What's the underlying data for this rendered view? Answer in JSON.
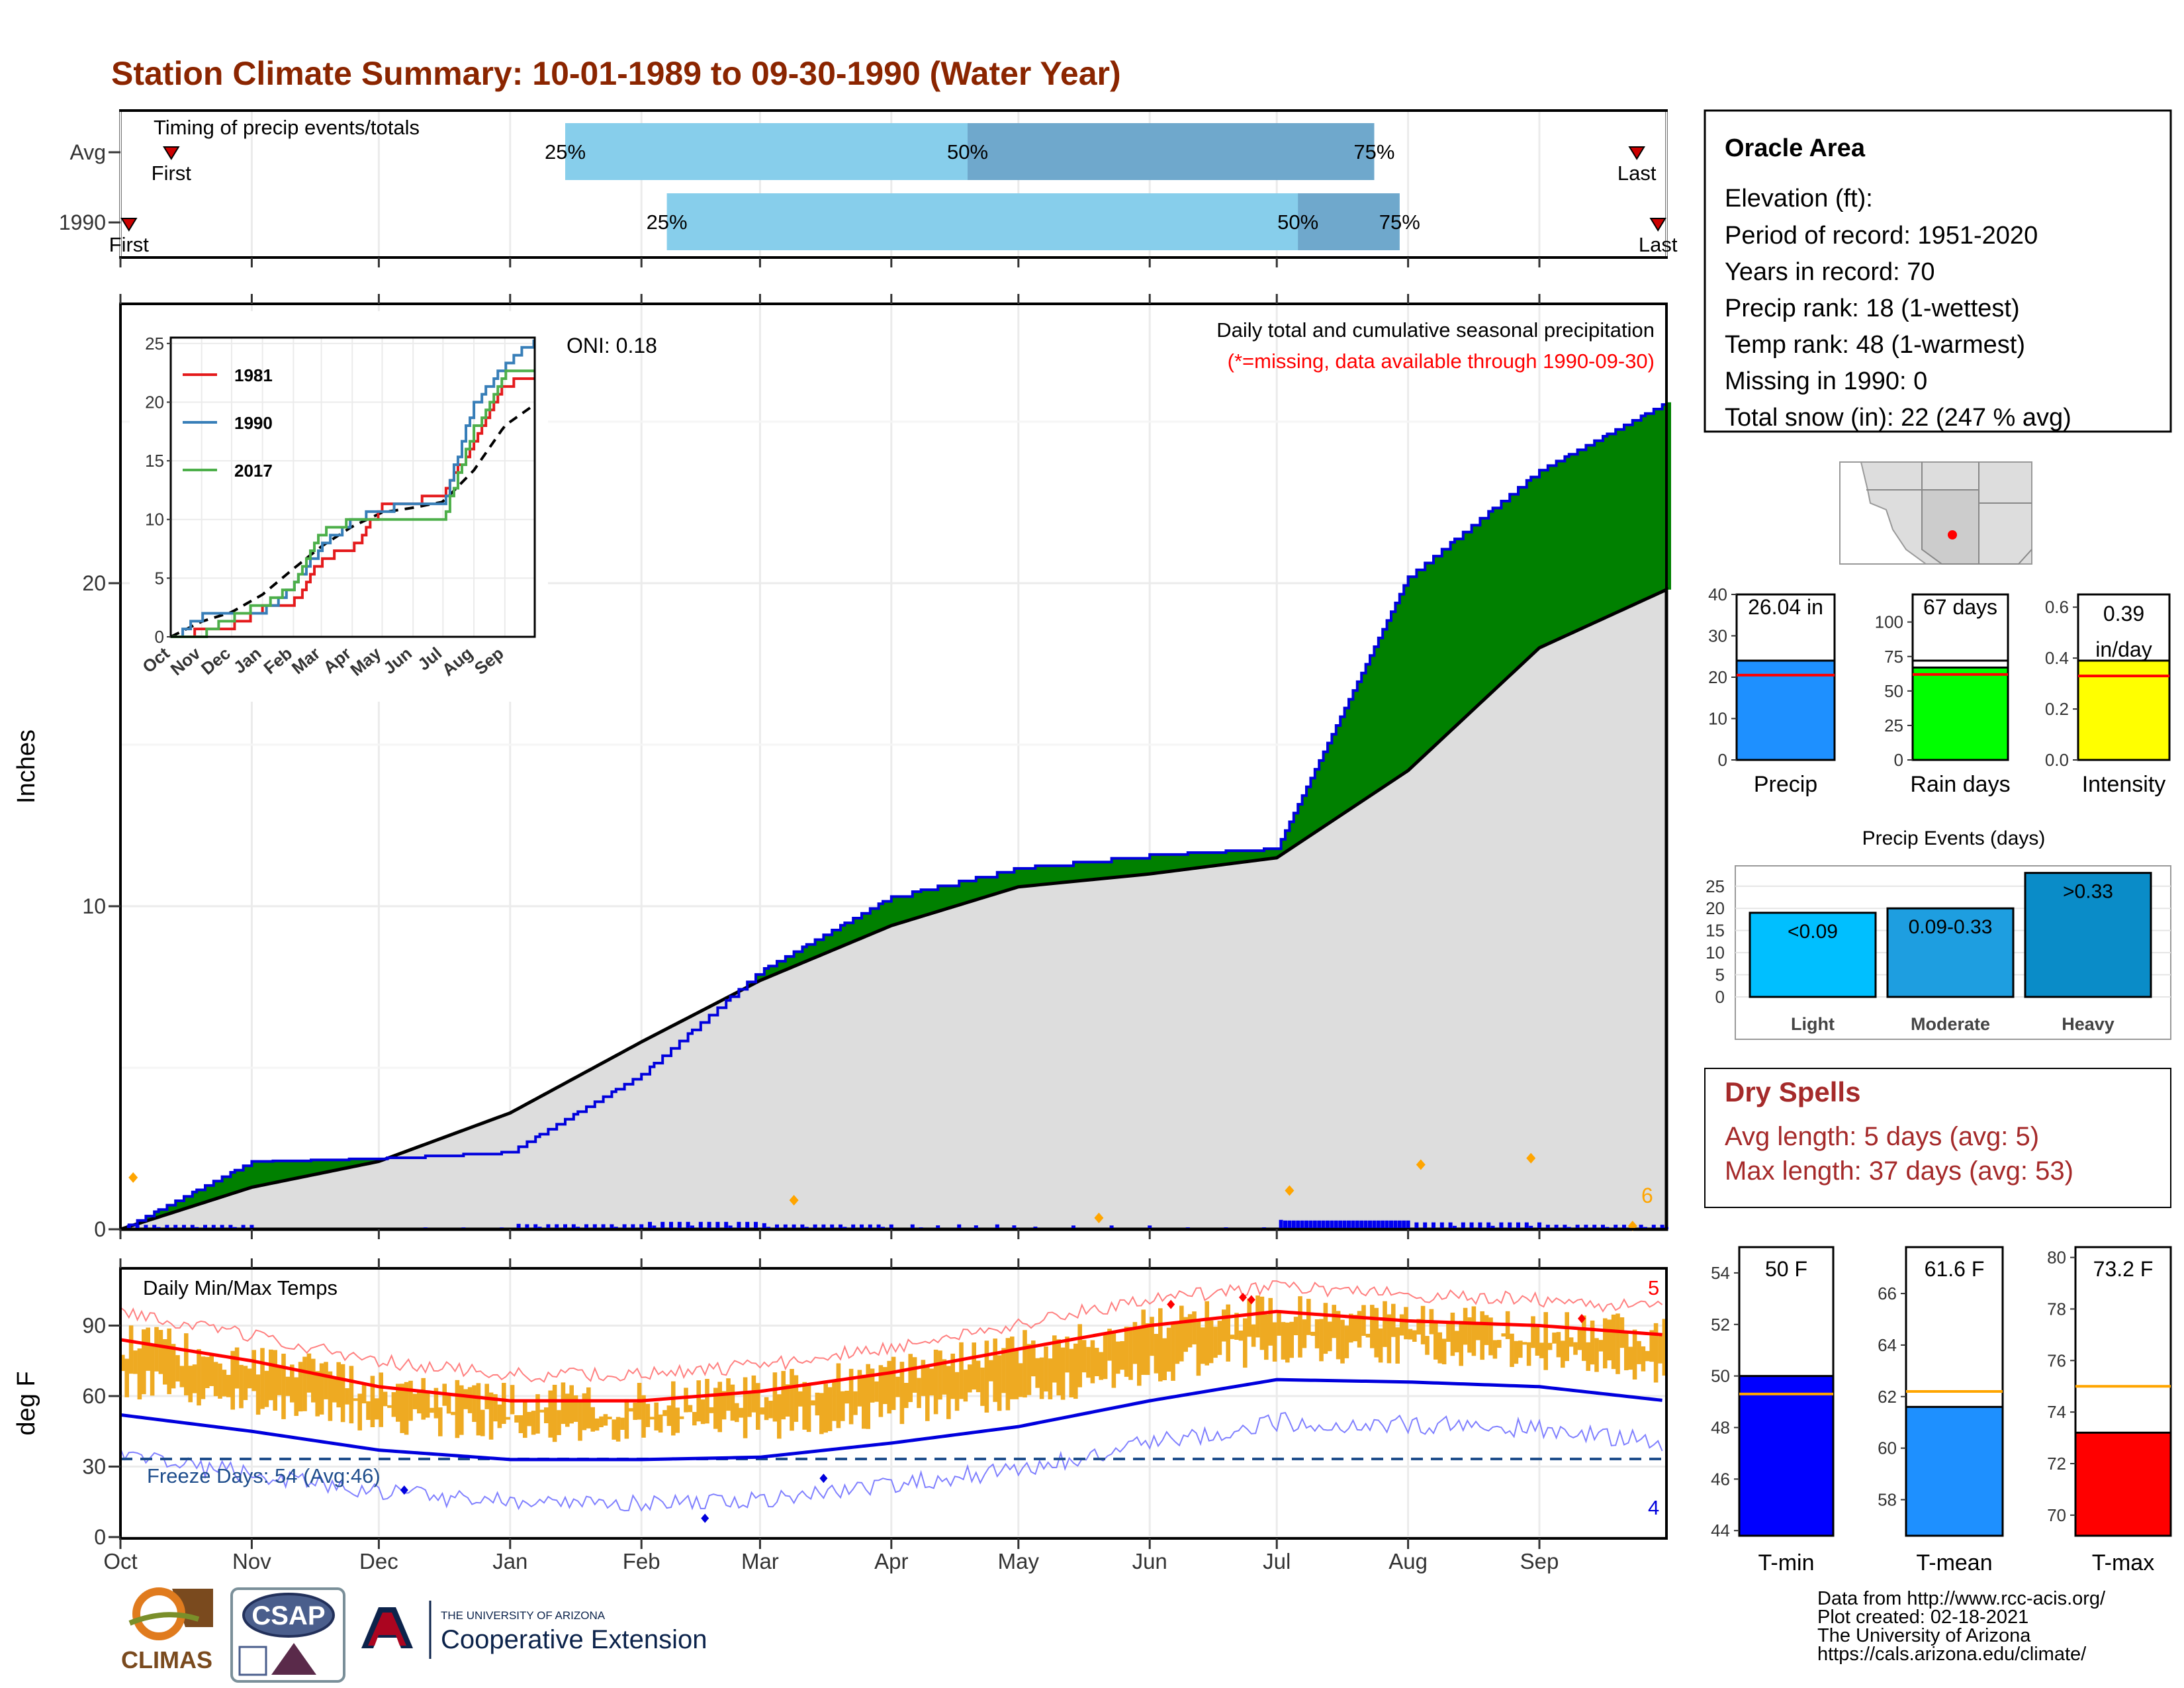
{
  "title": "Station Climate Summary: 10-01-1989 to 09-30-1990 (Water Year)",
  "timing": {
    "label": "Timing of precip events/totals",
    "rows": [
      {
        "name": "Avg",
        "first_label": "First",
        "last_label": "Last",
        "first": 12,
        "last": 358,
        "q25": 105,
        "q50": 200,
        "q75": 296
      },
      {
        "name": "1990",
        "first_label": "First",
        "last_label": "Last",
        "first": 2,
        "last": 363,
        "q25": 129,
        "q50": 278,
        "q75": 302
      }
    ],
    "pct_labels": [
      "25%",
      "50%",
      "75%"
    ]
  },
  "precip": {
    "title": "Daily total and cumulative seasonal precipitation",
    "subtitle": "(*=missing, data available through 1990-09-30)",
    "oni": "ONI: 0.18",
    "ylabel": "Inches",
    "yticks": [
      "0",
      "10",
      "20"
    ],
    "corner_count": "6"
  },
  "inset": {
    "yticks": [
      "0",
      "5",
      "10",
      "15",
      "20",
      "25"
    ],
    "xticks": [
      "Oct",
      "Nov",
      "Dec",
      "Jan",
      "Feb",
      "Mar",
      "Apr",
      "May",
      "Jun",
      "Jul",
      "Aug",
      "Sep"
    ],
    "legend": [
      "1981",
      "1990",
      "2017"
    ]
  },
  "temps": {
    "title": "Daily Min/Max Temps",
    "ylabel": "deg F",
    "yticks": [
      "0",
      "30",
      "60",
      "90"
    ],
    "freeze_label": "Freeze Days: 54 (Avg:46)",
    "max_count": "5",
    "min_count": "4"
  },
  "months": [
    "Oct",
    "Nov",
    "Dec",
    "Jan",
    "Feb",
    "Mar",
    "Apr",
    "May",
    "Jun",
    "Jul",
    "Aug",
    "Sep"
  ],
  "station": {
    "name": "Oracle Area",
    "lines": [
      "Elevation (ft):",
      "Period of record: 1951-2020",
      "Years in record: 70",
      "Precip rank: 18 (1-wettest)",
      "Temp rank: 48 (1-warmest)",
      "Missing in 1990: 0",
      "Total snow (in): 22 (247 % avg)"
    ]
  },
  "mini_bars": {
    "precip": {
      "label": "Precip",
      "text": "26.04 in",
      "ticks": [
        "0",
        "10",
        "20",
        "30",
        "40"
      ]
    },
    "rain_days": {
      "label": "Rain days",
      "text": "67 days",
      "ticks": [
        "0",
        "25",
        "50",
        "75",
        "100"
      ]
    },
    "intensity": {
      "label": "Intensity",
      "text": "0.39",
      "text2": "in/day",
      "ticks": [
        "0.0",
        "0.2",
        "0.4",
        "0.6"
      ]
    }
  },
  "events": {
    "title": "Precip Events (days)",
    "ticks": [
      "0",
      "5",
      "10",
      "15",
      "20",
      "25"
    ],
    "bars": [
      {
        "cat": "Light",
        "label": "<0.09"
      },
      {
        "cat": "Moderate",
        "label": "0.09-0.33"
      },
      {
        "cat": "Heavy",
        "label": ">0.33"
      }
    ]
  },
  "dry_spells": {
    "title": "Dry Spells",
    "avg_line": "Avg length: 5 days (avg: 5)",
    "max_line": "Max length: 37 days (avg: 53)"
  },
  "temp_bars": {
    "tmin": {
      "label": "T-min",
      "text": "50 F",
      "ticks": [
        "44",
        "46",
        "48",
        "50",
        "52",
        "54"
      ]
    },
    "tmean": {
      "label": "T-mean",
      "text": "61.6 F",
      "ticks": [
        "58",
        "60",
        "62",
        "64",
        "66"
      ]
    },
    "tmax": {
      "label": "T-max",
      "text": "73.2 F",
      "ticks": [
        "70",
        "72",
        "74",
        "76",
        "78",
        "80"
      ]
    }
  },
  "footer": {
    "lines": [
      "Data from http://www.rcc-acis.org/",
      "Plot created: 02-18-2021",
      "The University of Arizona",
      "https://cals.arizona.edu/climate/"
    ],
    "climas": "CLIMAS",
    "csap": "CSAP",
    "ua_small": "THE UNIVERSITY OF ARIZONA",
    "ua_big": "Cooperative Extension"
  },
  "colors": {
    "title": "#8B2500",
    "above": "#008000",
    "below": "#8B5A00",
    "cum_line": "#0000DD",
    "normal_fill": "#DDDDDD",
    "tmax_line": "#FF0000",
    "tmin_line": "#0000DD",
    "temp_bar": "#EEAA22",
    "timing_light": "#87CEEB",
    "timing_dark": "#6FA8CC",
    "dry_spells": "#A52A2A"
  },
  "chart_data": [
    {
      "type": "area",
      "title": "Daily total and cumulative seasonal precipitation",
      "ylabel": "Inches",
      "ylim": [
        0,
        26
      ],
      "x": [
        "Oct",
        "Nov",
        "Dec",
        "Jan",
        "Feb",
        "Mar",
        "Apr",
        "May",
        "Jun",
        "Jul",
        "Aug",
        "Sep",
        "Sep end"
      ],
      "series": [
        {
          "name": "1990",
          "values": [
            0,
            2.1,
            2.2,
            2.4,
            4.8,
            8.0,
            10.3,
            11.2,
            11.6,
            11.8,
            20.2,
            23.5,
            25.6
          ]
        },
        {
          "name": "",
          "values": [
            0,
            1.3,
            2.1,
            3.6,
            5.8,
            7.7,
            9.4,
            10.6,
            11.0,
            11.5,
            14.2,
            18.0,
            19.8
          ]
        }
      ]
    },
    {
      "type": "line",
      "title": "",
      "ylim": [
        0,
        25
      ],
      "x": [
        "Oct",
        "Nov",
        "Dec",
        "Jan",
        "Feb",
        "Mar",
        "Apr",
        "May",
        "Jun",
        "Jul",
        "Aug",
        "Sep",
        "Sep end"
      ],
      "series": [
        {
          "name": "1981",
          "values": [
            0,
            1.0,
            1.3,
            2.7,
            3.2,
            7.0,
            7.8,
            11.5,
            11.9,
            12.3,
            17.2,
            21.8,
            22.5
          ]
        },
        {
          "name": "1990",
          "values": [
            0,
            2.1,
            2.2,
            2.4,
            4.8,
            8.0,
            10.3,
            11.2,
            11.6,
            11.8,
            20.2,
            23.5,
            25.6
          ]
        },
        {
          "name": "2017",
          "values": [
            0,
            0.6,
            2.0,
            3.1,
            4.6,
            9.2,
            10.2,
            10.5,
            10.5,
            10.5,
            18.0,
            22.8,
            23.0
          ]
        },
        {
          "name": "",
          "values": [
            0,
            1.3,
            2.1,
            3.6,
            5.8,
            7.7,
            9.4,
            10.6,
            11.0,
            11.5,
            14.2,
            18.0,
            19.8
          ]
        }
      ]
    },
    {
      "type": "line",
      "title": "Daily Min/Max Temps",
      "ylabel": "deg F",
      "ylim": [
        0,
        110
      ],
      "x": [
        "Oct",
        "Nov",
        "Dec",
        "Jan",
        "Feb",
        "Mar",
        "Apr",
        "May",
        "Jun",
        "Jul",
        "Aug",
        "Sep",
        "Sep end"
      ],
      "series": [
        {
          "name": "",
          "values": [
            84,
            75,
            64,
            58,
            58,
            62,
            70,
            80,
            90,
            96,
            92,
            90,
            86
          ]
        },
        {
          "name": "",
          "values": [
            52,
            45,
            37,
            33,
            33,
            34,
            40,
            47,
            58,
            67,
            66,
            64,
            58
          ]
        }
      ],
      "reference_lines": {
        "freeze": 32
      }
    },
    {
      "type": "bar",
      "title": "Precip Events (days)",
      "categories": [
        "Light",
        "Moderate",
        "Heavy"
      ],
      "values": [
        19,
        20,
        28
      ],
      "ylim": [
        0,
        28
      ]
    },
    {
      "type": "bar",
      "categories": [
        "Precip",
        "Rain days",
        "Intensity"
      ],
      "values": [
        26.04,
        67,
        0.39
      ],
      "averages": [
        20.5,
        62,
        0.33
      ]
    },
    {
      "type": "bar",
      "categories": [
        "T-min",
        "T-mean",
        "T-max"
      ],
      "values": [
        50,
        61.6,
        73.2
      ],
      "averages": [
        49.3,
        62.2,
        75.0
      ]
    }
  ]
}
